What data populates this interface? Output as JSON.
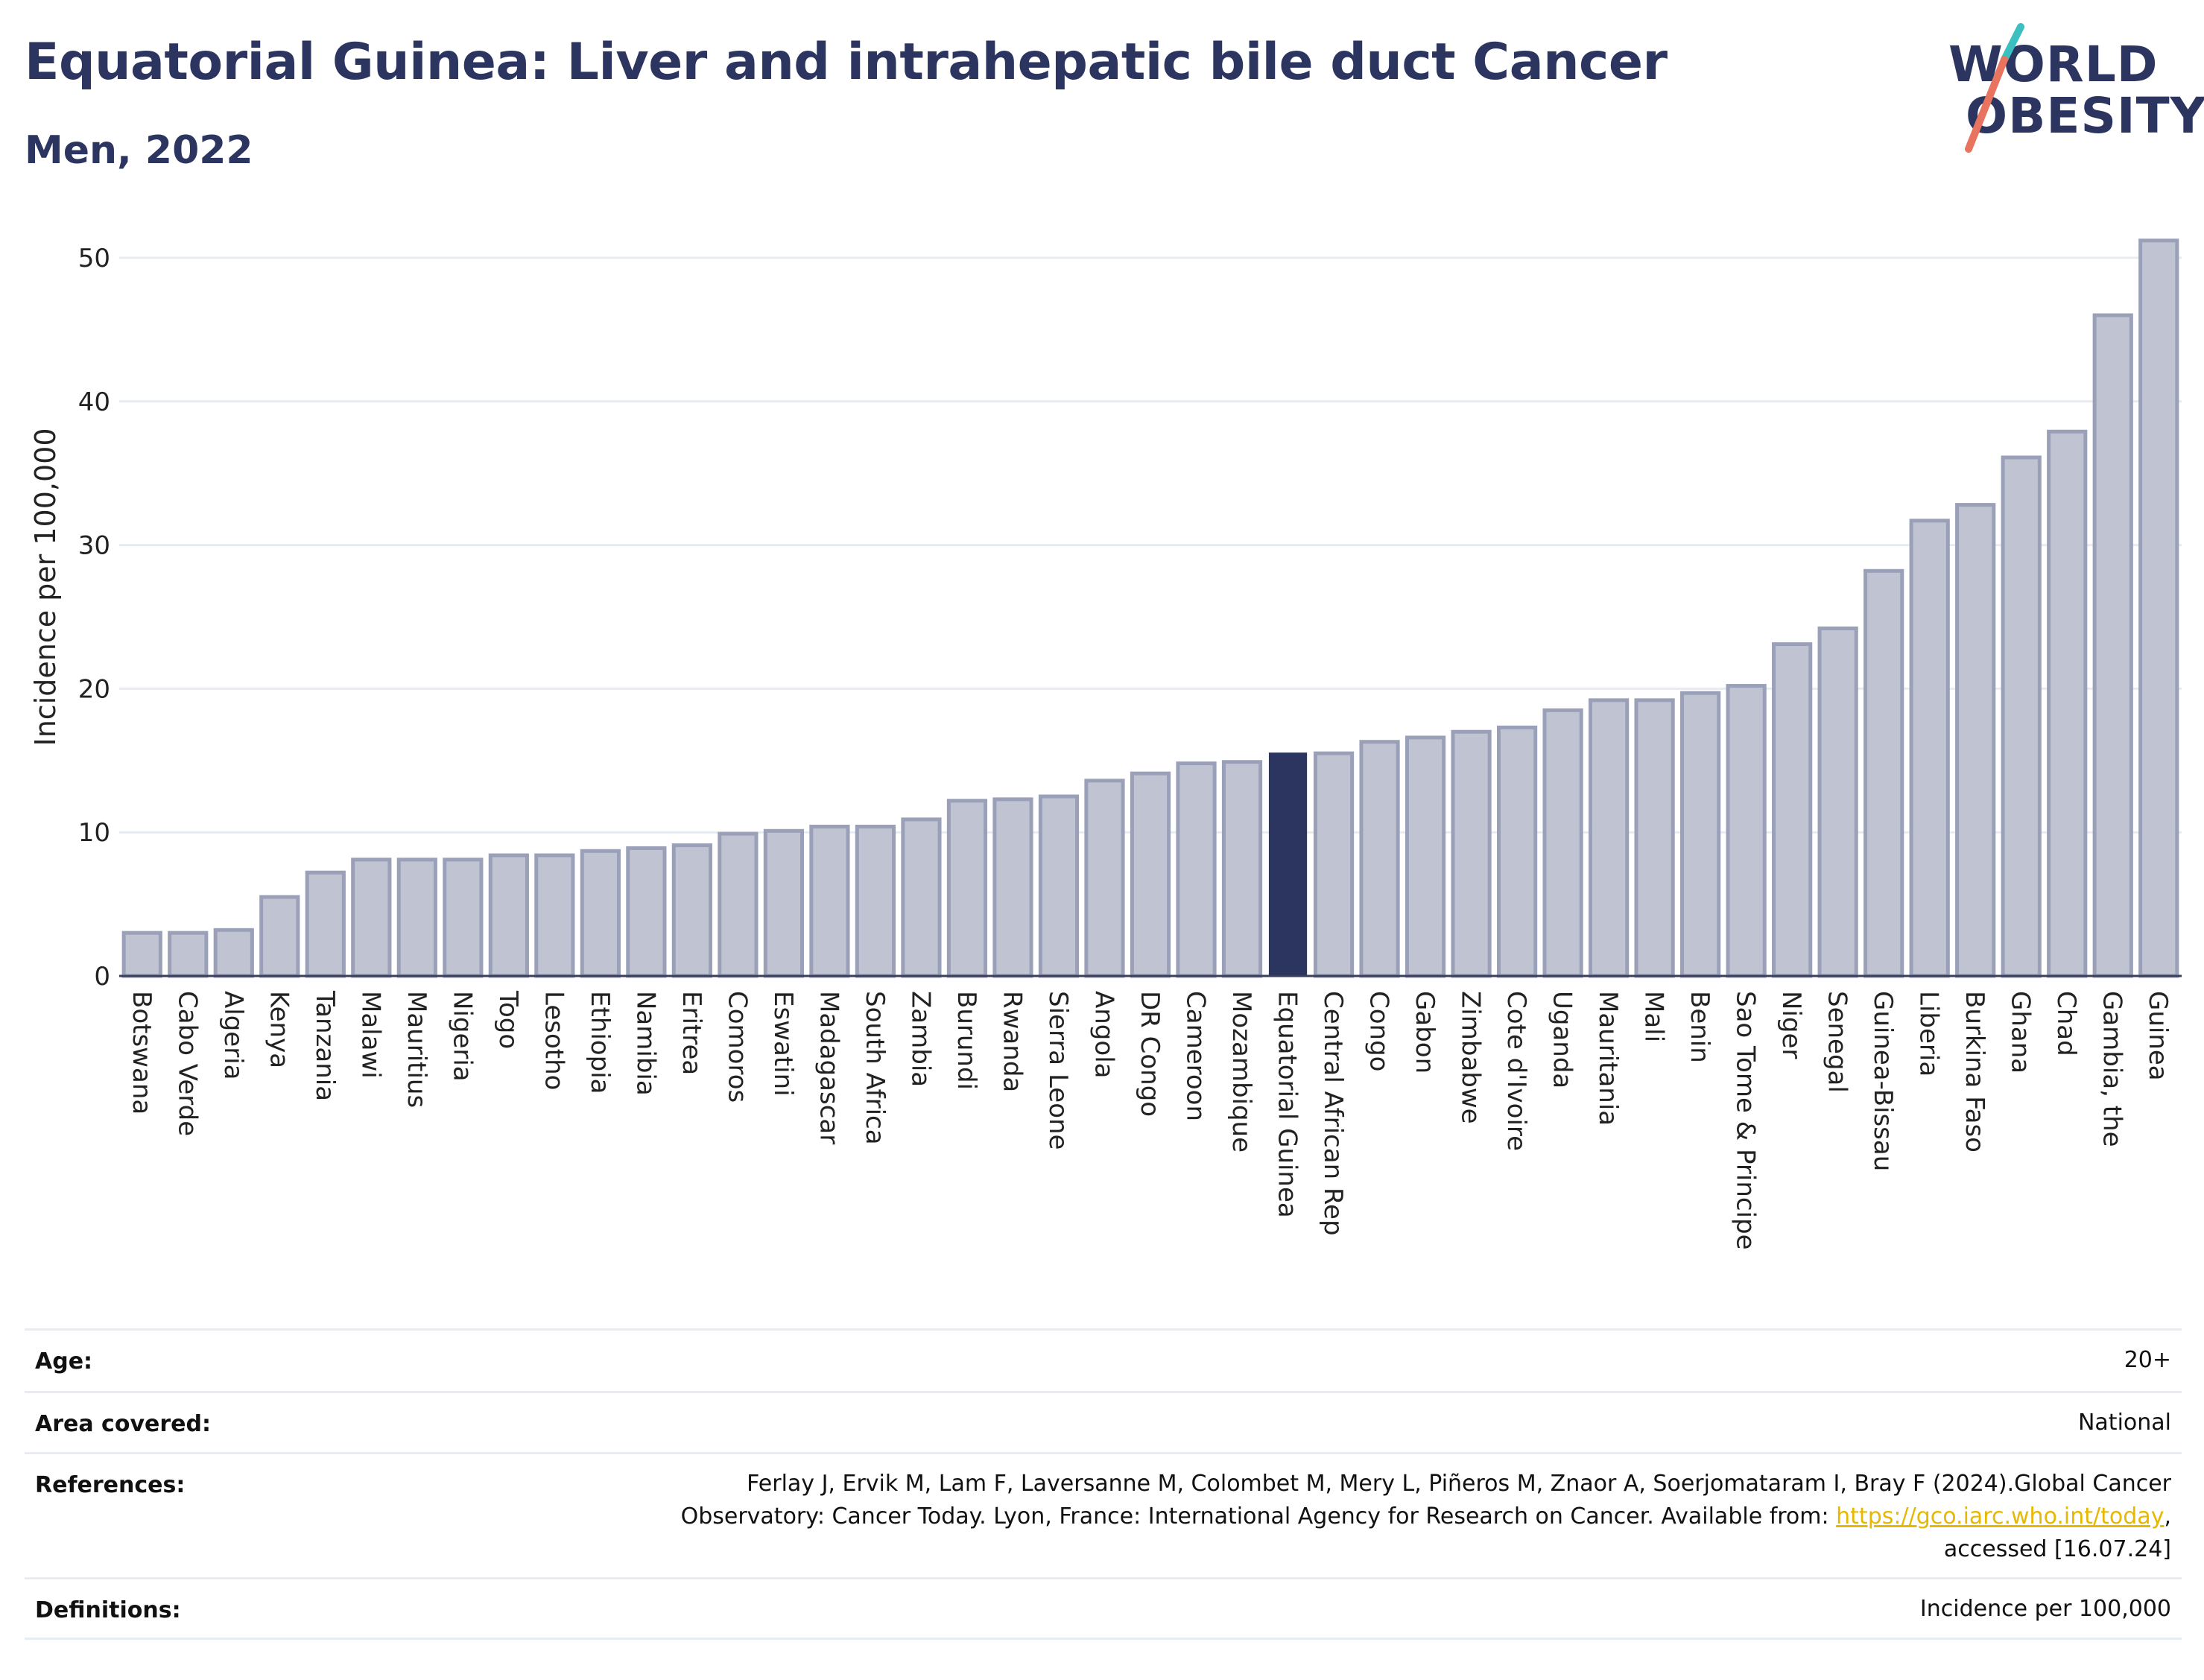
{
  "title": "Equatorial Guinea: Liver and intrahepatic bile duct Cancer",
  "subtitle": "Men, 2022",
  "logo": {
    "line1": "WORLD",
    "line2": "OBESITY"
  },
  "chart_data": {
    "type": "bar",
    "ylabel": "Incidence per 100,000",
    "xlabel": "",
    "ylim": [
      0,
      53
    ],
    "yticks": [
      0,
      10,
      20,
      30,
      40,
      50
    ],
    "grid": true,
    "highlight": "Equatorial Guinea",
    "colors": {
      "bar": "#c0c4d2",
      "bar_edge": "#9aa0b8",
      "highlight": "#2b3560",
      "grid": "#e6ecf2"
    },
    "categories": [
      "Botswana",
      "Cabo Verde",
      "Algeria",
      "Kenya",
      "Tanzania",
      "Malawi",
      "Mauritius",
      "Nigeria",
      "Togo",
      "Lesotho",
      "Ethiopia",
      "Namibia",
      "Eritrea",
      "Comoros",
      "Eswatini",
      "Madagascar",
      "South Africa",
      "Zambia",
      "Burundi",
      "Rwanda",
      "Sierra Leone",
      "Angola",
      "DR Congo",
      "Cameroon",
      "Mozambique",
      "Equatorial Guinea",
      "Central African Rep",
      "Congo",
      "Gabon",
      "Zimbabwe",
      "Cote d'Ivoire",
      "Uganda",
      "Mauritania",
      "Mali",
      "Benin",
      "Sao Tome & Principe",
      "Niger",
      "Senegal",
      "Guinea-Bissau",
      "Liberia",
      "Burkina Faso",
      "Ghana",
      "Chad",
      "Gambia, the",
      "Guinea"
    ],
    "values": [
      3.0,
      3.0,
      3.2,
      5.5,
      7.2,
      8.1,
      8.1,
      8.1,
      8.4,
      8.4,
      8.7,
      8.9,
      9.1,
      9.9,
      10.1,
      10.4,
      10.4,
      10.9,
      12.2,
      12.3,
      12.5,
      13.6,
      14.1,
      14.8,
      14.9,
      15.5,
      15.5,
      16.3,
      16.6,
      17.0,
      17.3,
      18.5,
      19.2,
      19.2,
      19.7,
      20.2,
      23.1,
      24.2,
      28.2,
      31.7,
      32.8,
      36.1,
      37.9,
      46.0,
      51.2
    ]
  },
  "meta": {
    "age_label": "Age:",
    "age_value": "20+",
    "area_label": "Area covered:",
    "area_value": "National",
    "ref_label": "References:",
    "ref_line1": "Ferlay J, Ervik M, Lam F, Laversanne M, Colombet M, Mery L, Piñeros M, Znaor A, Soerjomataram I, Bray F (2024).Global Cancer",
    "ref_line2_pre": "Observatory: Cancer Today. Lyon, France: International Agency for Research on Cancer. Available from: ",
    "ref_link": "https://gco.iarc.who.int/today",
    "ref_line2_post": ",",
    "ref_line3": "accessed [16.07.24]",
    "def_label": "Definitions:",
    "def_value": "Incidence per 100,000"
  }
}
